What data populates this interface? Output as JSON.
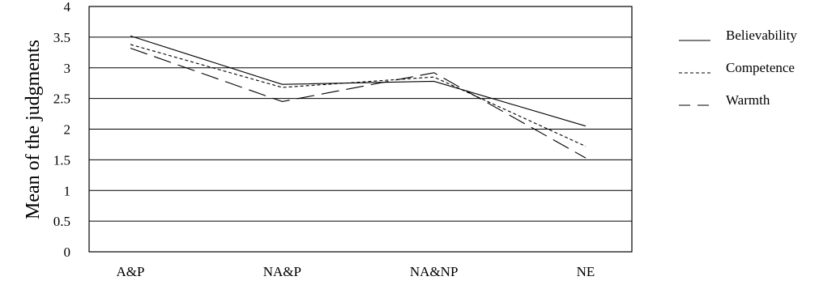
{
  "chart_data": {
    "type": "line",
    "title": "",
    "xlabel": "",
    "ylabel": "Mean of the judgments",
    "categories": [
      "A&P",
      "NA&P",
      "NA&NP",
      "NE"
    ],
    "ylim": [
      0,
      4
    ],
    "yticks": [
      "0",
      "0.5",
      "1",
      "1.5",
      "2",
      "2.5",
      "3",
      "3.5",
      "4"
    ],
    "grid": true,
    "legend_position": "right",
    "series": [
      {
        "name": "Believability",
        "values": [
          3.52,
          2.73,
          2.78,
          2.05
        ],
        "dash": "solid"
      },
      {
        "name": "Competence",
        "values": [
          3.38,
          2.68,
          2.85,
          1.72
        ],
        "dash": "dotted"
      },
      {
        "name": "Warmth",
        "values": [
          3.32,
          2.45,
          2.92,
          1.53
        ],
        "dash": "dashed"
      }
    ]
  }
}
